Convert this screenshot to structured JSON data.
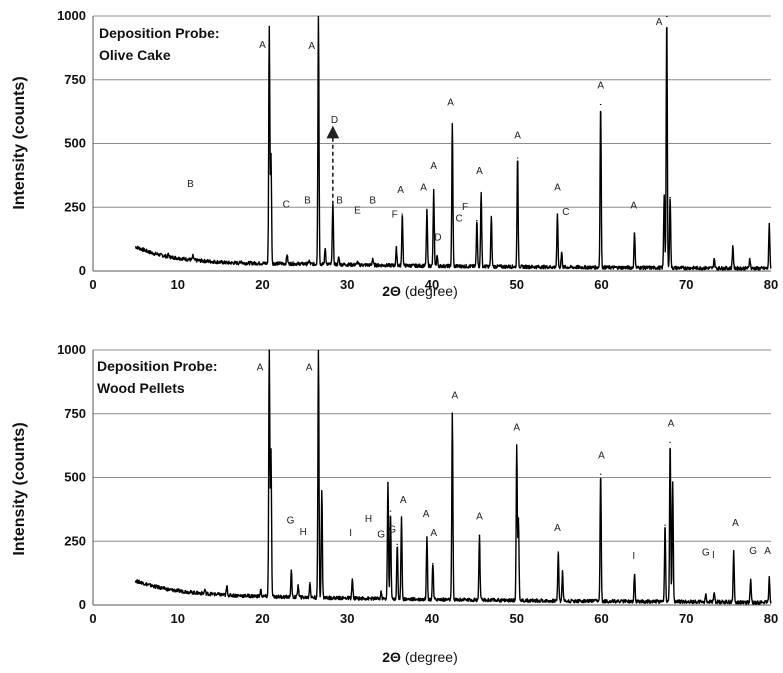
{
  "chart_data": [
    {
      "type": "line",
      "title_lines": [
        "Deposition Probe:",
        "Olive Cake"
      ],
      "xlabel": "2Θ",
      "xlabel_unit": " (degree)",
      "ylabel": "Intensity (counts)",
      "xlim": [
        0,
        80
      ],
      "ylim": [
        0,
        1000
      ],
      "x_ticks": [
        0,
        10,
        20,
        30,
        40,
        50,
        60,
        70,
        80
      ],
      "y_ticks": [
        0,
        250,
        500,
        750,
        1000
      ],
      "grid": true,
      "baseline": [
        [
          5,
          95
        ],
        [
          7,
          70
        ],
        [
          9,
          55
        ],
        [
          12,
          42
        ],
        [
          16,
          32
        ],
        [
          20,
          30
        ],
        [
          25,
          28
        ],
        [
          30,
          25
        ],
        [
          35,
          22
        ],
        [
          40,
          20
        ],
        [
          45,
          18
        ],
        [
          50,
          17
        ],
        [
          55,
          15
        ],
        [
          60,
          14
        ],
        [
          65,
          13
        ],
        [
          70,
          12
        ],
        [
          75,
          11
        ],
        [
          80,
          10
        ]
      ],
      "peaks": [
        [
          8.9,
          65
        ],
        [
          11.8,
          60
        ],
        [
          13.3,
          35
        ],
        [
          17.5,
          40
        ],
        [
          20.8,
          960
        ],
        [
          21.0,
          460
        ],
        [
          22.9,
          65
        ],
        [
          25.5,
          40
        ],
        [
          26.6,
          1000
        ],
        [
          27.4,
          90
        ],
        [
          28.3,
          270
        ],
        [
          29.0,
          55
        ],
        [
          31.2,
          35
        ],
        [
          33.0,
          50
        ],
        [
          35.8,
          90
        ],
        [
          36.5,
          225
        ],
        [
          39.4,
          235
        ],
        [
          40.2,
          315
        ],
        [
          40.6,
          60
        ],
        [
          42.4,
          575
        ],
        [
          45.3,
          200
        ],
        [
          45.8,
          310
        ],
        [
          47.0,
          210
        ],
        [
          50.1,
          445
        ],
        [
          54.8,
          225
        ],
        [
          55.3,
          75
        ],
        [
          59.9,
          655
        ],
        [
          63.9,
          150
        ],
        [
          67.4,
          300
        ],
        [
          67.7,
          1000
        ],
        [
          68.1,
          290
        ],
        [
          73.3,
          50
        ],
        [
          75.5,
          100
        ],
        [
          77.5,
          50
        ],
        [
          79.8,
          185
        ]
      ],
      "dashed_arrow": {
        "x": 28.3,
        "y_from": 260,
        "y_to": 545
      },
      "annotations": [
        {
          "text": "A",
          "x": 20.0,
          "y": 875
        },
        {
          "text": "A",
          "x": 25.8,
          "y": 870
        },
        {
          "text": "A",
          "x": 66.8,
          "y": 965
        },
        {
          "text": "A",
          "x": 42.2,
          "y": 650
        },
        {
          "text": "A",
          "x": 59.9,
          "y": 715
        },
        {
          "text": "A",
          "x": 50.1,
          "y": 520
        },
        {
          "text": "A",
          "x": 40.2,
          "y": 400
        },
        {
          "text": "A",
          "x": 45.6,
          "y": 380
        },
        {
          "text": "A",
          "x": 39.0,
          "y": 315
        },
        {
          "text": "A",
          "x": 36.3,
          "y": 305
        },
        {
          "text": "A",
          "x": 54.8,
          "y": 315
        },
        {
          "text": "A",
          "x": 63.8,
          "y": 245
        },
        {
          "text": "B",
          "x": 11.5,
          "y": 330
        },
        {
          "text": "B",
          "x": 25.3,
          "y": 265
        },
        {
          "text": "B",
          "x": 29.1,
          "y": 265
        },
        {
          "text": "B",
          "x": 33.0,
          "y": 265
        },
        {
          "text": "C",
          "x": 22.8,
          "y": 250
        },
        {
          "text": "C",
          "x": 43.2,
          "y": 195
        },
        {
          "text": "C",
          "x": 55.8,
          "y": 220
        },
        {
          "text": "D",
          "x": 28.5,
          "y": 580
        },
        {
          "text": "D",
          "x": 40.7,
          "y": 120
        },
        {
          "text": "E",
          "x": 31.2,
          "y": 225
        },
        {
          "text": "F",
          "x": 35.6,
          "y": 210
        },
        {
          "text": "F",
          "x": 43.9,
          "y": 240
        }
      ]
    },
    {
      "type": "line",
      "title_lines": [
        "Deposition Probe:",
        " Wood Pellets"
      ],
      "xlabel": "2Θ",
      "xlabel_unit": " (degree)",
      "ylabel": "Intensity (counts)",
      "xlim": [
        0,
        80
      ],
      "ylim": [
        0,
        1000
      ],
      "x_ticks": [
        0,
        10,
        20,
        30,
        40,
        50,
        60,
        70,
        80
      ],
      "y_ticks": [
        0,
        250,
        500,
        750,
        1000
      ],
      "grid": true,
      "baseline": [
        [
          5,
          95
        ],
        [
          7,
          75
        ],
        [
          9,
          60
        ],
        [
          12,
          48
        ],
        [
          16,
          38
        ],
        [
          20,
          34
        ],
        [
          25,
          30
        ],
        [
          30,
          27
        ],
        [
          35,
          24
        ],
        [
          40,
          22
        ],
        [
          45,
          20
        ],
        [
          50,
          18
        ],
        [
          55,
          16
        ],
        [
          60,
          15
        ],
        [
          65,
          14
        ],
        [
          70,
          13
        ],
        [
          75,
          12
        ],
        [
          80,
          10
        ]
      ],
      "peaks": [
        [
          8.9,
          60
        ],
        [
          13.2,
          60
        ],
        [
          15.8,
          75
        ],
        [
          19.8,
          60
        ],
        [
          20.8,
          1000
        ],
        [
          21.0,
          600
        ],
        [
          23.4,
          130
        ],
        [
          24.2,
          80
        ],
        [
          25.6,
          90
        ],
        [
          26.6,
          1000
        ],
        [
          27.0,
          450
        ],
        [
          30.6,
          100
        ],
        [
          34.0,
          50
        ],
        [
          34.8,
          480
        ],
        [
          35.1,
          370
        ],
        [
          35.9,
          240
        ],
        [
          36.4,
          340
        ],
        [
          39.4,
          270
        ],
        [
          40.1,
          165
        ],
        [
          42.4,
          750
        ],
        [
          45.6,
          275
        ],
        [
          50.0,
          630
        ],
        [
          50.2,
          340
        ],
        [
          54.9,
          210
        ],
        [
          55.4,
          130
        ],
        [
          59.9,
          515
        ],
        [
          63.9,
          120
        ],
        [
          67.5,
          315
        ],
        [
          68.1,
          640
        ],
        [
          68.4,
          480
        ],
        [
          72.3,
          40
        ],
        [
          73.3,
          50
        ],
        [
          75.6,
          210
        ],
        [
          77.6,
          95
        ],
        [
          79.8,
          110
        ]
      ],
      "annotations": [
        {
          "text": "A",
          "x": 19.7,
          "y": 920
        },
        {
          "text": "A",
          "x": 25.5,
          "y": 920
        },
        {
          "text": "A",
          "x": 42.7,
          "y": 810
        },
        {
          "text": "A",
          "x": 50.0,
          "y": 685
        },
        {
          "text": "A",
          "x": 60.0,
          "y": 575
        },
        {
          "text": "A",
          "x": 68.2,
          "y": 700
        },
        {
          "text": "A",
          "x": 36.6,
          "y": 400
        },
        {
          "text": "A",
          "x": 39.3,
          "y": 345
        },
        {
          "text": "A",
          "x": 40.2,
          "y": 270
        },
        {
          "text": "A",
          "x": 45.6,
          "y": 335
        },
        {
          "text": "A",
          "x": 54.8,
          "y": 290
        },
        {
          "text": "A",
          "x": 75.8,
          "y": 310
        },
        {
          "text": "A",
          "x": 79.6,
          "y": 200
        },
        {
          "text": "G",
          "x": 23.3,
          "y": 320
        },
        {
          "text": "G",
          "x": 35.3,
          "y": 285
        },
        {
          "text": "G",
          "x": 34.0,
          "y": 265
        },
        {
          "text": "G",
          "x": 72.3,
          "y": 195
        },
        {
          "text": "G",
          "x": 77.9,
          "y": 200
        },
        {
          "text": "H",
          "x": 24.8,
          "y": 275
        },
        {
          "text": "H",
          "x": 32.5,
          "y": 325
        },
        {
          "text": "I",
          "x": 30.4,
          "y": 270
        },
        {
          "text": "I",
          "x": 63.8,
          "y": 180
        },
        {
          "text": "I",
          "x": 73.2,
          "y": 185
        }
      ]
    }
  ]
}
